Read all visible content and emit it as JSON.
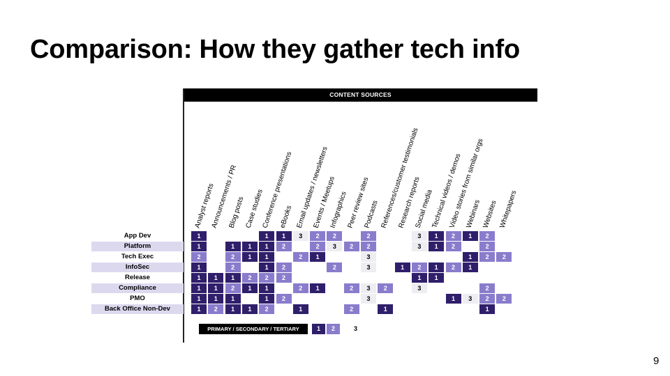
{
  "title": "Comparison: How they gather tech info",
  "page_number": "9",
  "table": {
    "header": "CONTENT SOURCES",
    "columns": [
      "Analyst reports",
      "Announcements / PR",
      "Blog posts",
      "Case studies",
      "Conference presentations",
      "eBooks",
      "Email updates / newsletters",
      "Events / Meetups",
      "Infographics",
      "Peer review sites",
      "Podcasts",
      "References/customer testimonials",
      "Research reports",
      "Social media",
      "Technical videos / demos",
      "Video stories from similar orgs",
      "Webinars",
      "Websites",
      "Whitepapers"
    ],
    "rows": [
      {
        "label": "App Dev",
        "cells": [
          1,
          0,
          0,
          0,
          1,
          1,
          3,
          2,
          2,
          0,
          2,
          0,
          0,
          3,
          1,
          2,
          1,
          2,
          0
        ]
      },
      {
        "label": "Platform",
        "cells": [
          1,
          0,
          1,
          1,
          1,
          2,
          0,
          2,
          3,
          2,
          2,
          0,
          0,
          3,
          1,
          2,
          0,
          2,
          0
        ]
      },
      {
        "label": "Tech Exec",
        "cells": [
          2,
          0,
          2,
          1,
          1,
          0,
          2,
          1,
          0,
          0,
          3,
          0,
          0,
          0,
          0,
          0,
          1,
          2,
          2
        ]
      },
      {
        "label": "InfoSec",
        "cells": [
          1,
          0,
          2,
          0,
          1,
          2,
          0,
          0,
          2,
          0,
          3,
          0,
          1,
          2,
          1,
          2,
          1,
          0,
          0
        ]
      },
      {
        "label": "Release",
        "cells": [
          1,
          1,
          1,
          2,
          2,
          2,
          0,
          0,
          0,
          0,
          0,
          0,
          0,
          1,
          1,
          0,
          0,
          0,
          0
        ]
      },
      {
        "label": "Compliance",
        "cells": [
          1,
          1,
          2,
          1,
          1,
          0,
          2,
          1,
          0,
          2,
          3,
          2,
          0,
          3,
          0,
          0,
          0,
          2,
          0
        ]
      },
      {
        "label": "PMO",
        "cells": [
          1,
          1,
          1,
          0,
          1,
          2,
          0,
          0,
          0,
          0,
          3,
          0,
          0,
          0,
          0,
          1,
          3,
          2,
          2
        ]
      },
      {
        "label": "Back Office Non-Dev",
        "cells": [
          1,
          2,
          1,
          1,
          2,
          0,
          1,
          0,
          0,
          2,
          0,
          1,
          0,
          0,
          0,
          0,
          0,
          1,
          0
        ]
      }
    ],
    "legend": {
      "label": "PRIMARY / SECONDARY / TERTIARY",
      "values": [
        "1",
        "2",
        "3"
      ]
    },
    "colors": {
      "primary": "#2f1f6b",
      "secondary": "#8a7ccc",
      "tertiary": "#ededf2",
      "row_band": "#dcd9ef"
    }
  }
}
